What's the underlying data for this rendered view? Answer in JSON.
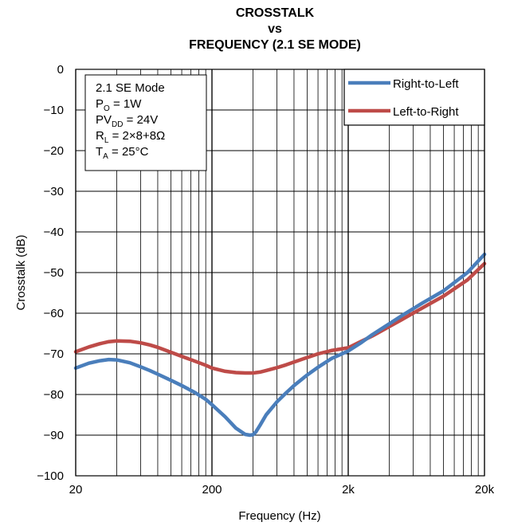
{
  "chart_data": {
    "type": "line",
    "title_lines": [
      "CROSSTALK",
      "vs",
      "FREQUENCY (2.1 SE MODE)"
    ],
    "xlabel": "Frequency (Hz)",
    "ylabel": "Crosstalk (dB)",
    "x_scale": "log",
    "xlim": [
      20,
      20000
    ],
    "ylim": [
      -100,
      0
    ],
    "x_ticks": [
      20,
      200,
      2000,
      20000
    ],
    "x_tick_labels": [
      "20",
      "200",
      "2k",
      "20k"
    ],
    "y_ticks": [
      0,
      -10,
      -20,
      -30,
      -40,
      -50,
      -60,
      -70,
      -80,
      -90,
      -100
    ],
    "y_tick_labels": [
      "0",
      "−10",
      "−20",
      "−30",
      "−40",
      "−50",
      "−60",
      "−70",
      "−80",
      "−90",
      "−100"
    ],
    "grid": true,
    "legend_position": "top-right",
    "annotation": {
      "lines": [
        {
          "main": "2.1 SE Mode",
          "sub": "",
          "rest": ""
        },
        {
          "main": "P",
          "sub": "O",
          "rest": " = 1W"
        },
        {
          "main": "PV",
          "sub": "DD",
          "rest": " = 24V"
        },
        {
          "main": "R",
          "sub": "L",
          "rest": " = 2×8+8Ω"
        },
        {
          "main": "T",
          "sub": "A",
          "rest": " = 25°C"
        }
      ]
    },
    "series": [
      {
        "name": "Right-to-Left",
        "color": "#4a7ebb",
        "x": [
          20,
          25,
          30,
          35,
          40,
          50,
          60,
          70,
          80,
          100,
          120,
          150,
          180,
          200,
          250,
          300,
          350,
          380,
          400,
          420,
          450,
          500,
          600,
          700,
          800,
          1000,
          1200,
          1500,
          2000,
          2500,
          3000,
          4000,
          5000,
          7000,
          10000,
          15000,
          20000
        ],
        "y": [
          -73.5,
          -72.3,
          -71.7,
          -71.4,
          -71.5,
          -72.2,
          -73.2,
          -74.1,
          -75.0,
          -76.5,
          -77.8,
          -79.5,
          -81.2,
          -82.5,
          -85.5,
          -88.3,
          -89.8,
          -90.0,
          -89.9,
          -89.2,
          -87.6,
          -85.0,
          -81.8,
          -79.6,
          -77.8,
          -75.2,
          -73.3,
          -71.2,
          -69.3,
          -67.2,
          -65.3,
          -62.6,
          -60.5,
          -57.5,
          -54.5,
          -50.0,
          -45.5
        ]
      },
      {
        "name": "Left-to-Right",
        "color": "#be4b48",
        "x": [
          20,
          25,
          30,
          35,
          40,
          50,
          60,
          70,
          80,
          100,
          120,
          150,
          180,
          200,
          250,
          300,
          350,
          400,
          450,
          500,
          600,
          700,
          800,
          1000,
          1200,
          1500,
          2000,
          2500,
          3000,
          4000,
          5000,
          7000,
          10000,
          15000,
          20000
        ],
        "y": [
          -69.5,
          -68.3,
          -67.5,
          -67.0,
          -66.8,
          -66.9,
          -67.3,
          -67.8,
          -68.4,
          -69.6,
          -70.6,
          -71.8,
          -72.8,
          -73.5,
          -74.3,
          -74.6,
          -74.7,
          -74.7,
          -74.5,
          -74.1,
          -73.4,
          -72.7,
          -72.0,
          -70.9,
          -70.0,
          -69.2,
          -68.5,
          -66.9,
          -65.6,
          -63.3,
          -61.5,
          -58.7,
          -55.8,
          -51.8,
          -47.8
        ]
      }
    ]
  }
}
